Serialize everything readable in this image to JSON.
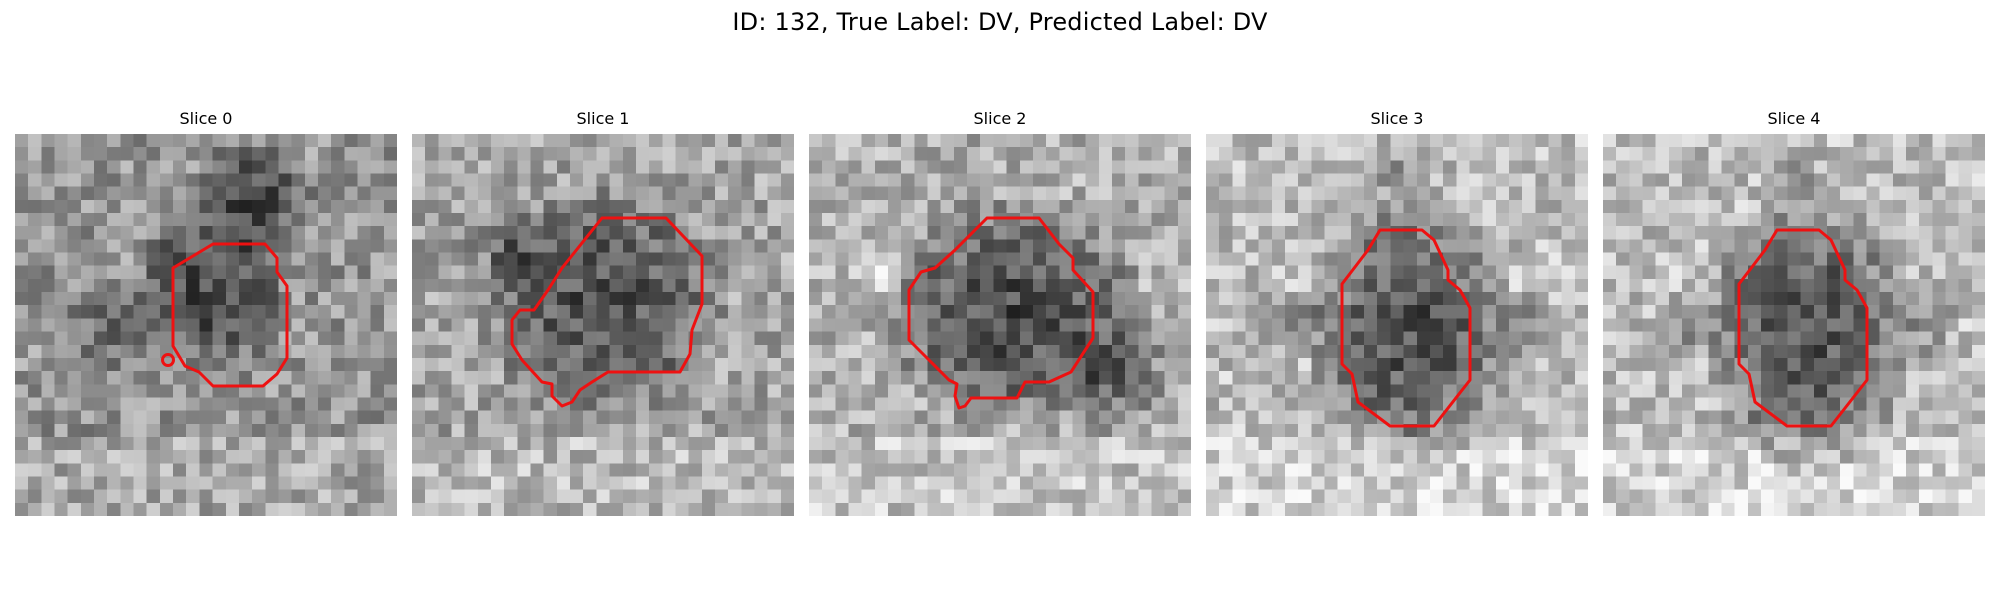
{
  "figure": {
    "title": "ID: 132, True Label: DV, Predicted Label: DV"
  },
  "panels": [
    {
      "title": "Slice 0"
    },
    {
      "title": "Slice 1"
    },
    {
      "title": "Slice 2"
    },
    {
      "title": "Slice 3"
    },
    {
      "title": "Slice 4"
    }
  ],
  "colors": {
    "contour": "#ee1111",
    "background": "#ffffff"
  }
}
